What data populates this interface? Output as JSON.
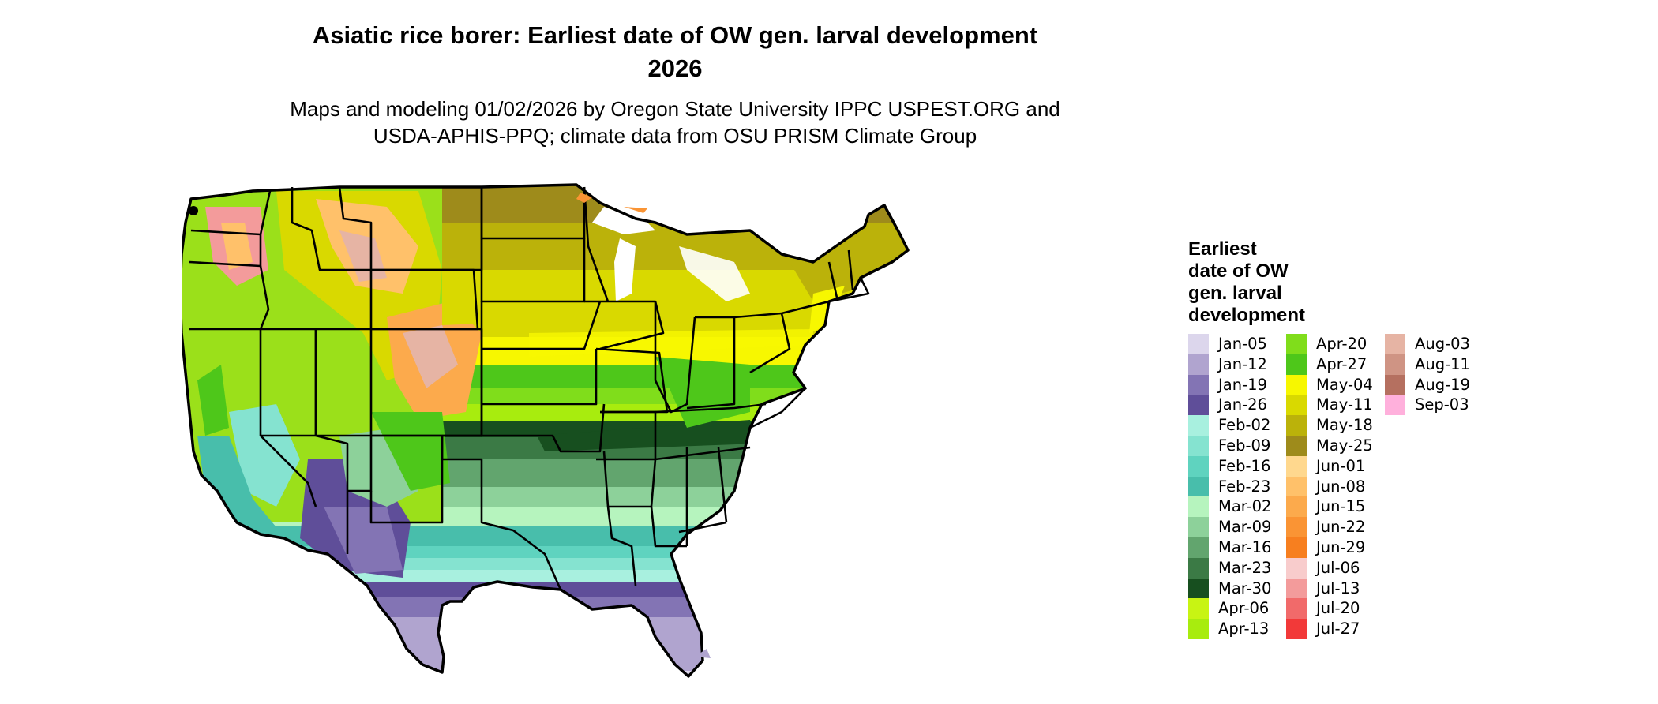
{
  "title_line1": "Asiatic rice borer: Earliest date of OW gen. larval development",
  "title_line2": "2026",
  "subtitle_line1": "Maps and modeling 01/02/2026 by Oregon State University IPPC USPEST.ORG and",
  "subtitle_line2": "USDA-APHIS-PPQ; climate data from OSU PRISM Climate Group",
  "legend": {
    "title": [
      "Earliest",
      "date of OW",
      "gen. larval",
      "development"
    ],
    "columns": [
      [
        {
          "label": "Jan-05",
          "color": "#DCD6EC"
        },
        {
          "label": "Jan-12",
          "color": "#B0A4CF"
        },
        {
          "label": "Jan-19",
          "color": "#8374B4"
        },
        {
          "label": "Jan-26",
          "color": "#5F4E99"
        },
        {
          "label": "Feb-02",
          "color": "#A8F0DF"
        },
        {
          "label": "Feb-09",
          "color": "#85E3D0"
        },
        {
          "label": "Feb-16",
          "color": "#5FD3BF"
        },
        {
          "label": "Feb-23",
          "color": "#48BEAB"
        },
        {
          "label": "Mar-02",
          "color": "#B6F4BE"
        },
        {
          "label": "Mar-09",
          "color": "#8DD19A"
        },
        {
          "label": "Mar-16",
          "color": "#62A56E"
        },
        {
          "label": "Mar-23",
          "color": "#3B7A45"
        },
        {
          "label": "Mar-30",
          "color": "#174F1F"
        },
        {
          "label": "Apr-06",
          "color": "#C8F413"
        },
        {
          "label": "Apr-13",
          "color": "#A8EC0E"
        }
      ],
      [
        {
          "label": "Apr-20",
          "color": "#80DD1B"
        },
        {
          "label": "Apr-27",
          "color": "#4EC71A"
        },
        {
          "label": "May-04",
          "color": "#F7F700"
        },
        {
          "label": "May-11",
          "color": "#D9D900"
        },
        {
          "label": "May-18",
          "color": "#BBB20A"
        },
        {
          "label": "May-25",
          "color": "#9E8B1B"
        },
        {
          "label": "Jun-01",
          "color": "#FFD88E"
        },
        {
          "label": "Jun-08",
          "color": "#FFC16A"
        },
        {
          "label": "Jun-15",
          "color": "#FCAA4C"
        },
        {
          "label": "Jun-22",
          "color": "#FA9434"
        },
        {
          "label": "Jun-29",
          "color": "#F77F1F"
        },
        {
          "label": "Jul-06",
          "color": "#F8CCCC"
        },
        {
          "label": "Jul-13",
          "color": "#F39B9B"
        },
        {
          "label": "Jul-20",
          "color": "#F16A6A"
        },
        {
          "label": "Jul-27",
          "color": "#F23939"
        }
      ],
      [
        {
          "label": "Aug-03",
          "color": "#E6B4A4"
        },
        {
          "label": "Aug-11",
          "color": "#CF9484"
        },
        {
          "label": "Aug-19",
          "color": "#B57060"
        },
        {
          "label": "Sep-03",
          "color": "#FFB0DC"
        }
      ]
    ]
  }
}
